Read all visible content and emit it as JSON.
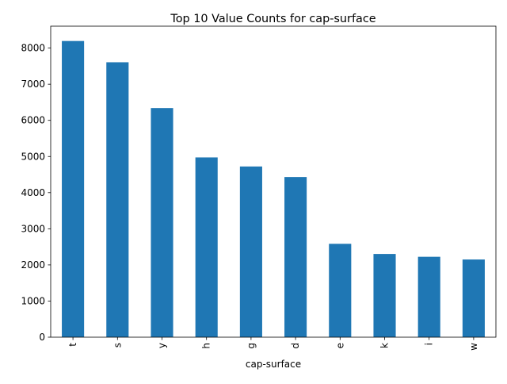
{
  "chart_data": {
    "type": "bar",
    "title": "Top 10 Value Counts for cap-surface",
    "xlabel": "cap-surface",
    "ylabel": "",
    "categories": [
      "t",
      "s",
      "y",
      "h",
      "g",
      "d",
      "e",
      "k",
      "i",
      "w"
    ],
    "values": [
      8196,
      7608,
      6341,
      4974,
      4724,
      4432,
      2584,
      2303,
      2225,
      2150
    ],
    "ylim": [
      0,
      8606
    ],
    "yticks": [
      0,
      1000,
      2000,
      3000,
      4000,
      5000,
      6000,
      7000,
      8000
    ],
    "ytick_labels": [
      "0",
      "1000",
      "2000",
      "3000",
      "4000",
      "5000",
      "6000",
      "7000",
      "8000"
    ],
    "xtick_rotation": 90,
    "grid": false,
    "legend": "none",
    "bar_color": "#1f77b4"
  }
}
